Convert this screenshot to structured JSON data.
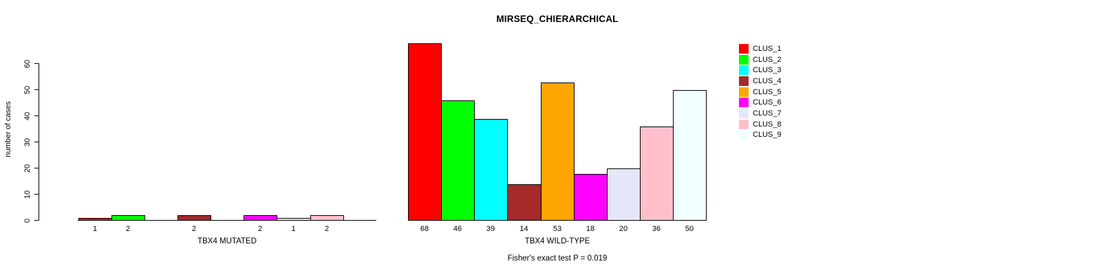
{
  "title": "MIRSEQ_CHIERARCHICAL",
  "annotation": "Fisher's exact test P = 0.019",
  "y_axis": {
    "label": "number of cases",
    "ticks": [
      0,
      10,
      20,
      30,
      40,
      50,
      60
    ],
    "range": [
      0,
      60
    ]
  },
  "colors": [
    "#FF0000",
    "#00FF00",
    "#00FFFF",
    "#A52A2A",
    "#FFA500",
    "#FF00FF",
    "#E6E6FA",
    "#FFC0CB",
    "#F0FFFF"
  ],
  "legend": {
    "position": "top-right",
    "entries": [
      {
        "label": "CLUS_1",
        "color": "#FF0000"
      },
      {
        "label": "CLUS_2",
        "color": "#00FF00"
      },
      {
        "label": "CLUS_3",
        "color": "#00FFFF"
      },
      {
        "label": "CLUS_4",
        "color": "#A52A2A"
      },
      {
        "label": "CLUS_5",
        "color": "#FFA500"
      },
      {
        "label": "CLUS_6",
        "color": "#FF00FF"
      },
      {
        "label": "CLUS_7",
        "color": "#E6E6FA"
      },
      {
        "label": "CLUS_8",
        "color": "#FFC0CB"
      },
      {
        "label": "CLUS_9",
        "color": "#F0FFFF"
      }
    ]
  },
  "chart_data": [
    {
      "type": "bar",
      "panel": "left",
      "xlabel": "TBX4 MUTATED",
      "categories": [
        "CLUS_1",
        "CLUS_2",
        "CLUS_3",
        "CLUS_4",
        "CLUS_5",
        "CLUS_6",
        "CLUS_7",
        "CLUS_8",
        "CLUS_9"
      ],
      "values": [
        1,
        2,
        0,
        2,
        0,
        2,
        1,
        2,
        0
      ],
      "ylim": [
        0,
        60
      ],
      "grid": false,
      "note": "zero-value clusters draw no bar and no label"
    },
    {
      "type": "bar",
      "panel": "right",
      "xlabel": "TBX4 WILD-TYPE",
      "categories": [
        "CLUS_1",
        "CLUS_2",
        "CLUS_3",
        "CLUS_4",
        "CLUS_5",
        "CLUS_6",
        "CLUS_7",
        "CLUS_8",
        "CLUS_9"
      ],
      "values": [
        68,
        46,
        39,
        14,
        53,
        18,
        20,
        36,
        50
      ],
      "ylim": [
        0,
        60
      ],
      "grid": false
    }
  ]
}
